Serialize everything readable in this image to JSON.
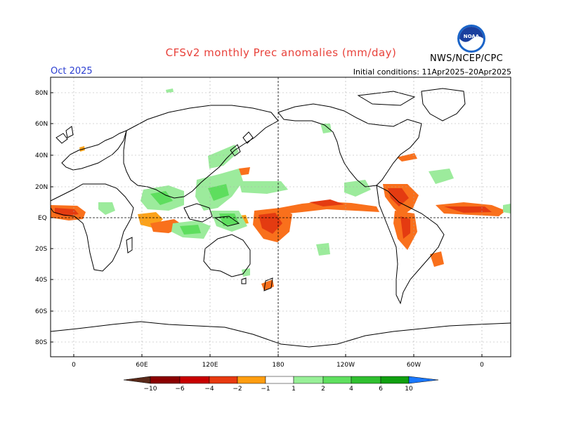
{
  "header": {
    "title": "CFSv2 monthly Prec anomalies (mm/day)",
    "month": "Oct 2025",
    "initial_conditions": "Initial conditions: 11Apr2025–20Apr2025",
    "agency": "NWS/NCEP/CPC",
    "logo_text": "NOAA"
  },
  "axes": {
    "lat_labels": [
      "80N",
      "60N",
      "40N",
      "20N",
      "EQ",
      "20S",
      "40S",
      "60S",
      "80S"
    ],
    "lon_labels": [
      "0",
      "60E",
      "120E",
      "180",
      "120W",
      "60W",
      "0"
    ]
  },
  "colorbar": {
    "labels": [
      "−10",
      "−6",
      "−4",
      "−2",
      "−1",
      "1",
      "2",
      "4",
      "6",
      "10"
    ],
    "colors": [
      "#5a2a1a",
      "#8b0000",
      "#c80000",
      "#e83a10",
      "#ff6a10",
      "#ff9e10",
      "#ffffff",
      "#98f098",
      "#60e060",
      "#30c030",
      "#10a010",
      "#008a00",
      "#1a78ff"
    ]
  },
  "legend_colors": {
    "dry_strong": "#e43b11",
    "dry_moderate": "#f9701c",
    "dry_weak": "#fba21b",
    "wet_weak": "#9ceb9c",
    "wet_moderate": "#5ede5e"
  }
}
